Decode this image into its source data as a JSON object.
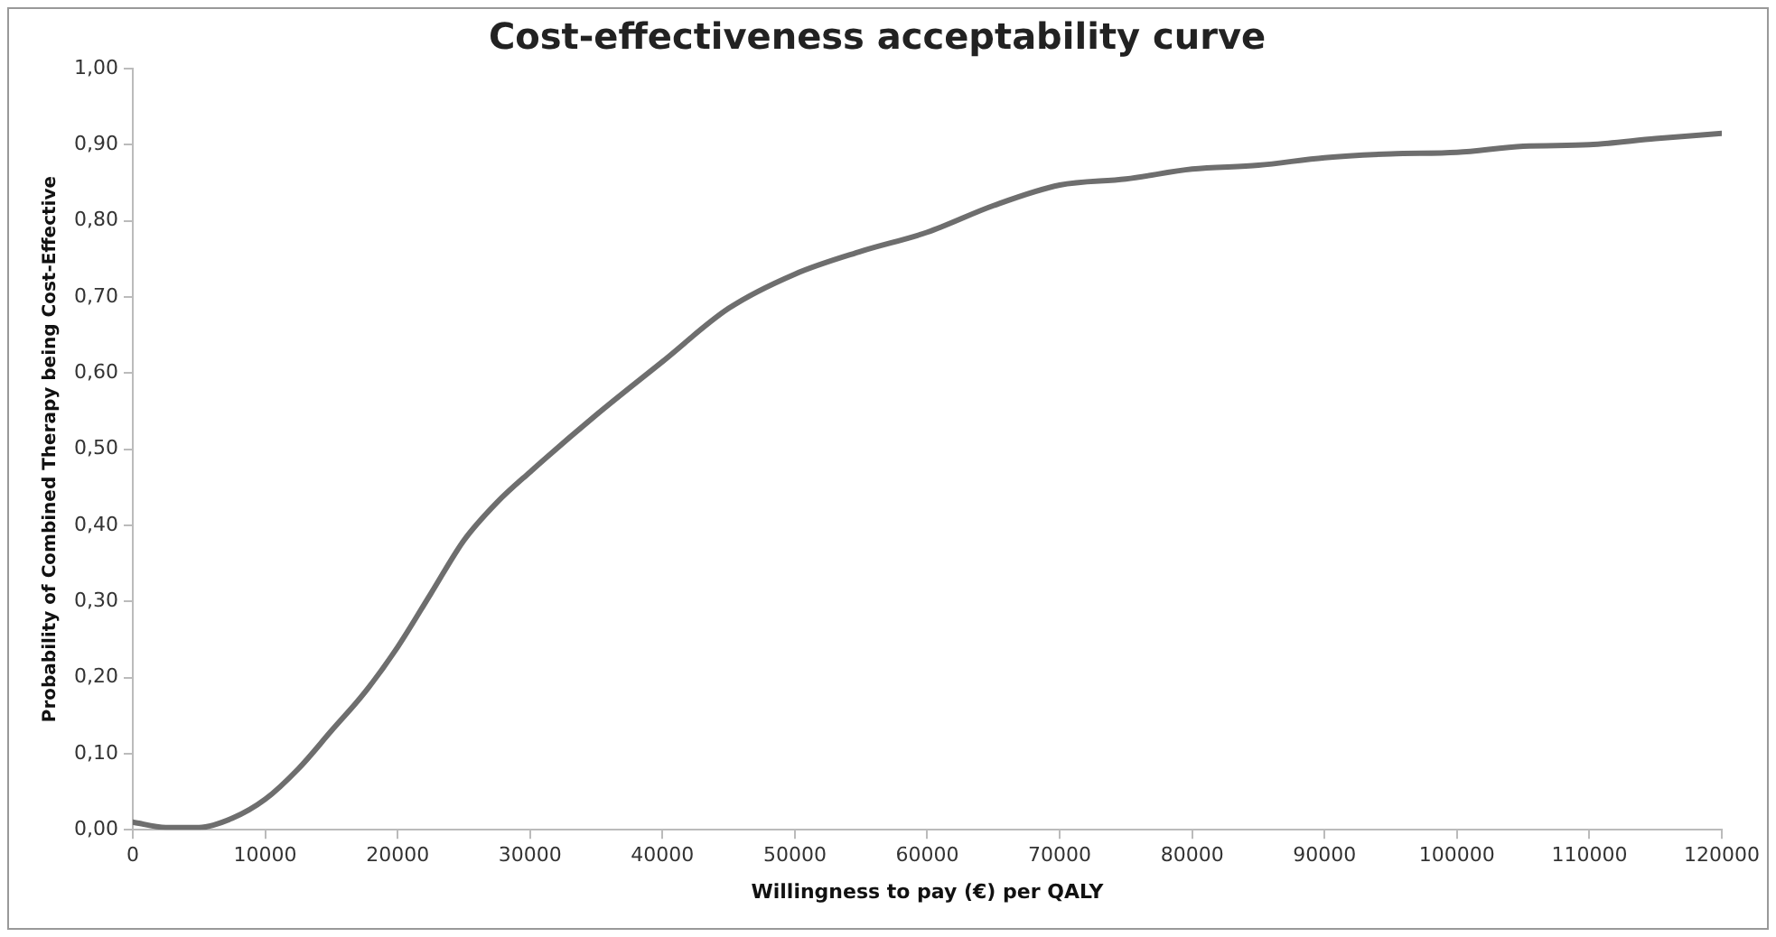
{
  "chart_data": {
    "type": "line",
    "title": "Cost-effectiveness acceptability curve",
    "xlabel": "Willingness to pay (€) per QALY",
    "ylabel": "Probability of Combined Therapy being Cost-Effective",
    "x": [
      0,
      2500,
      5000,
      7500,
      10000,
      12500,
      15000,
      17500,
      20000,
      22500,
      25000,
      27500,
      30000,
      35000,
      40000,
      45000,
      50000,
      55000,
      60000,
      65000,
      70000,
      75000,
      80000,
      85000,
      90000,
      95000,
      100000,
      105000,
      110000,
      115000,
      120000
    ],
    "series": [
      {
        "color": "#6e6e6e",
        "values": [
          0.01,
          0.003,
          0.003,
          0.015,
          0.04,
          0.08,
          0.13,
          0.18,
          0.24,
          0.31,
          0.38,
          0.43,
          0.47,
          0.545,
          0.615,
          0.685,
          0.73,
          0.76,
          0.785,
          0.82,
          0.847,
          0.855,
          0.868,
          0.873,
          0.883,
          0.888,
          0.89,
          0.898,
          0.9,
          0.908,
          0.915
        ]
      }
    ],
    "xlim": [
      0,
      120000
    ],
    "xticks": [
      0,
      10000,
      20000,
      30000,
      40000,
      50000,
      60000,
      70000,
      80000,
      90000,
      100000,
      110000,
      120000
    ],
    "ylim": [
      0,
      1
    ],
    "yticks": [
      {
        "value": 0,
        "label": "0,00"
      },
      {
        "value": 0.1,
        "label": "0,10"
      },
      {
        "value": 0.2,
        "label": "0,20"
      },
      {
        "value": 0.3,
        "label": "0,30"
      },
      {
        "value": 0.4,
        "label": "0,40"
      },
      {
        "value": 0.5,
        "label": "0,50"
      },
      {
        "value": 0.6,
        "label": "0,60"
      },
      {
        "value": 0.7,
        "label": "0,70"
      },
      {
        "value": 0.8,
        "label": "0,80"
      },
      {
        "value": 0.9,
        "label": "0,90"
      },
      {
        "value": 1,
        "label": "1,00"
      }
    ],
    "grid": false,
    "legend": false,
    "marker": "none",
    "line_style": "solid"
  }
}
